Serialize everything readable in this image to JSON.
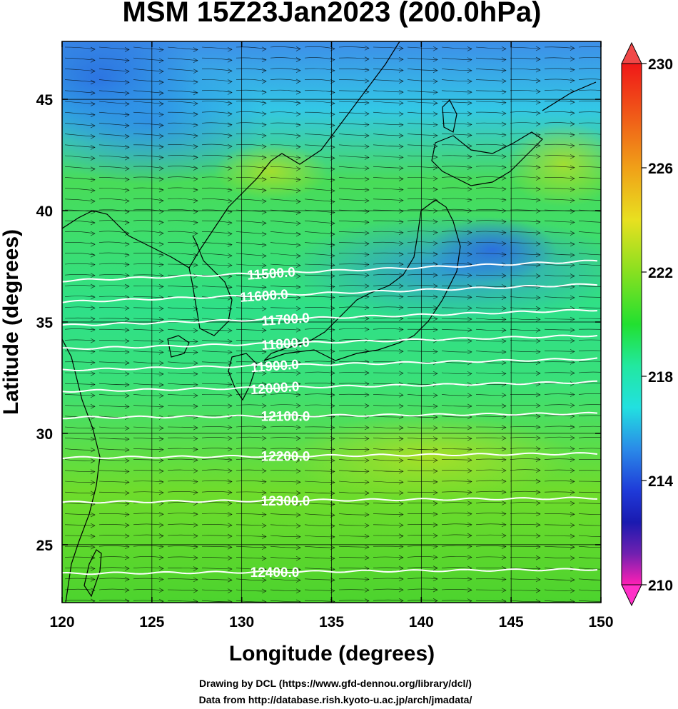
{
  "chart_data": {
    "type": "heatmap",
    "title": "MSM 15Z23Jan2023 (200.0hPa)",
    "xlabel": "Longitude (degrees)",
    "ylabel": "Latitude  (degrees)",
    "xlim": [
      120,
      150
    ],
    "ylim": [
      22.4,
      47.6
    ],
    "x_ticks": [
      "120",
      "125",
      "130",
      "135",
      "140",
      "145",
      "150"
    ],
    "y_ticks": [
      "25",
      "30",
      "35",
      "40",
      "45"
    ],
    "colorbar": {
      "range": [
        210,
        230
      ],
      "tick_labels": [
        "230",
        "226",
        "222",
        "218",
        "214",
        "210"
      ],
      "colors": [
        "#ff1fb4",
        "#c020c8",
        "#5a18a8",
        "#1a1ab0",
        "#1f40d8",
        "#2a7fe8",
        "#2fb8f0",
        "#22e0e0",
        "#22e88a",
        "#22e030",
        "#55e020",
        "#9ae020",
        "#d8e020",
        "#f0c818",
        "#f09a18",
        "#f06818",
        "#f03818",
        "#f01818"
      ]
    },
    "contours": [
      {
        "label": "11500.0",
        "lat": 37.3
      },
      {
        "label": "11600.0",
        "lat": 36.3
      },
      {
        "label": "11700.0",
        "lat": 35.2
      },
      {
        "label": "11800.0",
        "lat": 34.1
      },
      {
        "label": "11900.0",
        "lat": 33.1
      },
      {
        "label": "12000.0",
        "lat": 32.1
      },
      {
        "label": "12100.0",
        "lat": 30.8
      },
      {
        "label": "12200.0",
        "lat": 29.0
      },
      {
        "label": "12300.0",
        "lat": 27.0
      },
      {
        "label": "12400.0",
        "lat": 23.8
      }
    ],
    "grid": true
  },
  "credits": {
    "line1": "Drawing by DCL (https://www.gfd-dennou.org/library/dcl/)",
    "line2": "Data from http://database.rish.kyoto-u.ac.jp/arch/jmadata/"
  }
}
